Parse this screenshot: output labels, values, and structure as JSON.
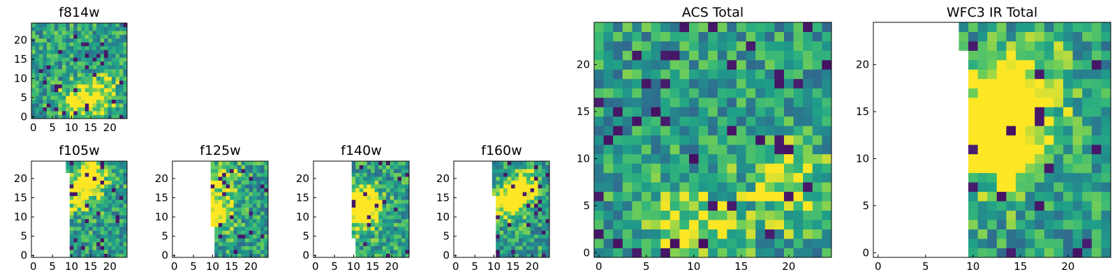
{
  "chart_data": [
    {
      "id": "f814w",
      "type": "heatmap",
      "title": "f814w",
      "colormap": "viridis",
      "x_ticks": [
        "0",
        "5",
        "10",
        "15",
        "20"
      ],
      "y_ticks": [
        "0",
        "5",
        "10",
        "15",
        "20"
      ],
      "xlim": [
        -0.5,
        24.5
      ],
      "ylim": [
        -0.5,
        24.5
      ],
      "coverage_x_start": -0.5,
      "coverage_steps": [],
      "seed": 11,
      "hotspots": [
        [
          12,
          4,
          0.5
        ],
        [
          18,
          6,
          0.35
        ]
      ]
    },
    {
      "id": "f105w",
      "type": "heatmap",
      "title": "f105w",
      "colormap": "viridis",
      "x_ticks": [
        "0",
        "5",
        "10",
        "15",
        "20"
      ],
      "y_ticks": [
        "0",
        "5",
        "10",
        "15",
        "20"
      ],
      "xlim": [
        -0.5,
        24.5
      ],
      "ylim": [
        -0.5,
        24.5
      ],
      "coverage_x_start": 9.5,
      "coverage_steps": [
        [
          21.5,
          8.5
        ]
      ],
      "seed": 23,
      "hotspots": [
        [
          15,
          20,
          0.6
        ],
        [
          11,
          15,
          0.4
        ]
      ]
    },
    {
      "id": "f125w",
      "type": "heatmap",
      "title": "f125w",
      "colormap": "viridis",
      "x_ticks": [
        "0",
        "5",
        "10",
        "15",
        "20"
      ],
      "y_ticks": [
        "0",
        "5",
        "10",
        "15",
        "20"
      ],
      "xlim": [
        -0.5,
        24.5
      ],
      "ylim": [
        -0.5,
        24.5
      ],
      "coverage_x_start": 10.5,
      "coverage_steps": [
        [
          7.5,
          9.5
        ]
      ],
      "seed": 37,
      "hotspots": [
        [
          11,
          11,
          0.6
        ],
        [
          12,
          20,
          0.35
        ]
      ]
    },
    {
      "id": "f140w",
      "type": "heatmap",
      "title": "f140w",
      "colormap": "viridis",
      "x_ticks": [
        "0",
        "5",
        "10",
        "15",
        "20"
      ],
      "y_ticks": [
        "0",
        "5",
        "10",
        "15",
        "20"
      ],
      "xlim": [
        -0.5,
        24.5
      ],
      "ylim": [
        -0.5,
        24.5
      ],
      "coverage_x_start": 10.5,
      "coverage_steps": [
        [
          4.5,
          9.5
        ]
      ],
      "seed": 41,
      "hotspots": [
        [
          12,
          14,
          0.6
        ],
        [
          13,
          10,
          0.4
        ]
      ]
    },
    {
      "id": "f160w",
      "type": "heatmap",
      "title": "f160w",
      "colormap": "viridis",
      "x_ticks": [
        "0",
        "5",
        "10",
        "15",
        "20"
      ],
      "y_ticks": [
        "0",
        "5",
        "10",
        "15",
        "20"
      ],
      "xlim": [
        -0.5,
        24.5
      ],
      "ylim": [
        -0.5,
        24.5
      ],
      "coverage_x_start": 10.5,
      "coverage_steps": [
        [
          15.5,
          9.5
        ]
      ],
      "seed": 53,
      "hotspots": [
        [
          14,
          14,
          0.6
        ],
        [
          18,
          18,
          0.45
        ]
      ]
    },
    {
      "id": "acs-total",
      "type": "heatmap",
      "title": "ACS Total",
      "colormap": "viridis",
      "x_ticks": [
        "0",
        "5",
        "10",
        "15",
        "20"
      ],
      "y_ticks": [
        "0",
        "5",
        "10",
        "15",
        "20"
      ],
      "xlim": [
        -0.5,
        24.5
      ],
      "ylim": [
        -0.5,
        24.5
      ],
      "coverage_x_start": -0.5,
      "coverage_steps": [],
      "seed": 67,
      "hotspots": [
        [
          10,
          2,
          0.35
        ],
        [
          20,
          7,
          0.3
        ]
      ]
    },
    {
      "id": "wfc3-ir-total",
      "type": "heatmap",
      "title": "WFC3 IR Total",
      "colormap": "viridis",
      "x_ticks": [
        "0",
        "5",
        "10",
        "15",
        "20"
      ],
      "y_ticks": [
        "0",
        "5",
        "10",
        "15",
        "20"
      ],
      "xlim": [
        -0.5,
        24.5
      ],
      "ylim": [
        -0.5,
        24.5
      ],
      "coverage_x_start": 9.5,
      "coverage_steps": [
        [
          21.5,
          8.5
        ]
      ],
      "seed": 79,
      "hotspots": [
        [
          12,
          14,
          0.6
        ],
        [
          13,
          11,
          0.5
        ],
        [
          15,
          18,
          0.4
        ]
      ]
    }
  ]
}
